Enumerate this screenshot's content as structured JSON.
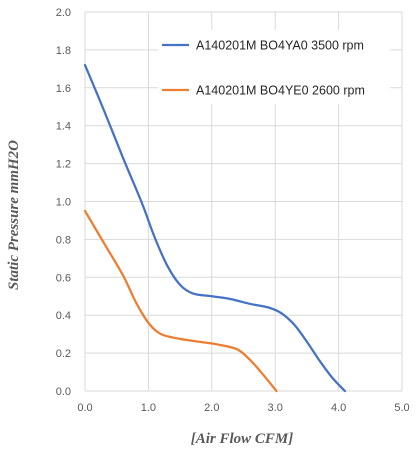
{
  "chart_data": {
    "type": "line",
    "xlabel": "[Air Flow CFM]",
    "ylabel": "Static Pressure mmH2O",
    "xlim": [
      0,
      5
    ],
    "ylim": [
      0,
      2
    ],
    "xticks": [
      "0.0",
      "1.0",
      "2.0",
      "3.0",
      "4.0",
      "5.0"
    ],
    "yticks": [
      "0.0",
      "0.2",
      "0.4",
      "0.6",
      "0.8",
      "1.0",
      "1.2",
      "1.4",
      "1.6",
      "1.8",
      "2.0"
    ],
    "grid": true,
    "legend_position": "top-right",
    "series": [
      {
        "name": "A140201M BO4YA0 3500 rpm",
        "color": "#4472C4",
        "x": [
          0.0,
          0.3,
          0.6,
          0.9,
          1.1,
          1.3,
          1.5,
          1.7,
          2.0,
          2.3,
          2.6,
          2.9,
          3.1,
          3.3,
          3.5,
          3.7,
          3.9,
          4.1
        ],
        "y": [
          1.72,
          1.48,
          1.23,
          0.99,
          0.81,
          0.66,
          0.56,
          0.515,
          0.5,
          0.485,
          0.46,
          0.44,
          0.41,
          0.35,
          0.26,
          0.16,
          0.07,
          0.0
        ]
      },
      {
        "name": "A140201M BO4YE0 2600 rpm",
        "color": "#ED7D31",
        "x": [
          0.0,
          0.3,
          0.6,
          0.8,
          1.0,
          1.2,
          1.5,
          1.8,
          2.1,
          2.4,
          2.6,
          2.8,
          3.02
        ],
        "y": [
          0.95,
          0.78,
          0.61,
          0.47,
          0.36,
          0.3,
          0.275,
          0.26,
          0.245,
          0.22,
          0.165,
          0.09,
          0.0
        ]
      }
    ]
  }
}
